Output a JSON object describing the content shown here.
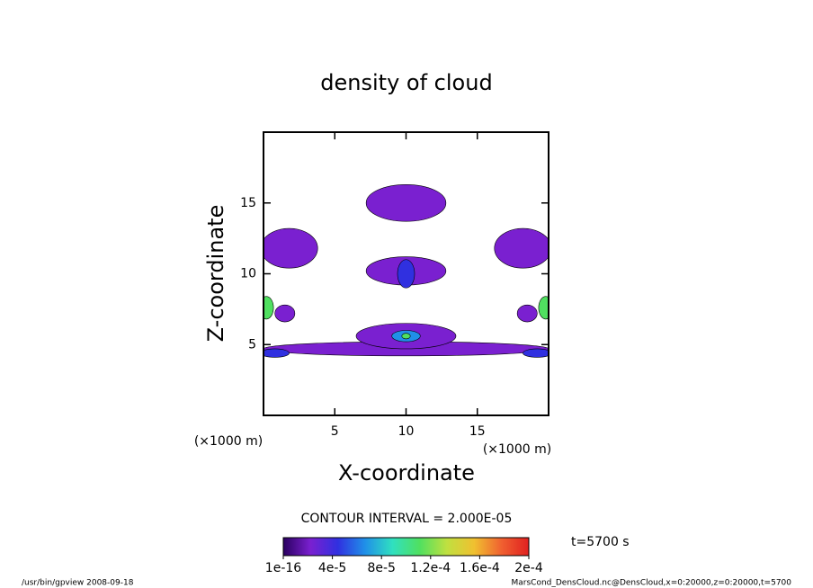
{
  "chart_data": {
    "type": "contour",
    "title": "density of cloud",
    "xlabel": "X-coordinate",
    "ylabel": "Z-coordinate",
    "xunit": "(×1000 m)",
    "yunit": "(×1000 m)",
    "xlim": [
      0,
      20
    ],
    "ylim": [
      0,
      20
    ],
    "xticks": [
      5,
      10,
      15
    ],
    "yticks": [
      5,
      10,
      15
    ],
    "contour_interval": "CONTOUR INTERVAL = 2.000E-05",
    "time_label": "t=5700 s",
    "footer_left": "/usr/bin/gpview  2008-09-18",
    "footer_right": "MarsCond_DensCloud.nc@DensCloud,x=0:20000,z=0:20000,t=5700",
    "colorbar_lim": [
      0,
      0.0002
    ],
    "colorbar_ticks": [
      {
        "value": 1e-16,
        "label": "1e-16"
      },
      {
        "value": 4e-05,
        "label": "4e-5"
      },
      {
        "value": 8e-05,
        "label": "8e-5"
      },
      {
        "value": 0.00012,
        "label": "1.2e-4"
      },
      {
        "value": 0.00016,
        "label": "1.6e-4"
      },
      {
        "value": 0.0002,
        "label": "2e-4"
      }
    ],
    "colormap": [
      "#2a0060",
      "#7a20d0",
      "#3030e0",
      "#2090e8",
      "#30e0c0",
      "#50e060",
      "#c0e040",
      "#f0c030",
      "#f06030",
      "#e02020"
    ],
    "regions": [
      {
        "x": 10,
        "z": 15,
        "rx": 2.8,
        "rz": 1.3,
        "value": 2e-05
      },
      {
        "x": 10,
        "z": 10.2,
        "rx": 2.8,
        "rz": 1.0,
        "value": 2e-05
      },
      {
        "x": 10,
        "z": 10,
        "rx": 0.6,
        "rz": 1.0,
        "value": 4e-05
      },
      {
        "x": 1.8,
        "z": 11.8,
        "rx": 2.0,
        "rz": 1.4,
        "value": 2e-05
      },
      {
        "x": 18.2,
        "z": 11.8,
        "rx": 2.0,
        "rz": 1.4,
        "value": 2e-05
      },
      {
        "x": 10,
        "z": 4.7,
        "rx": 10,
        "rz": 0.5,
        "value": 2e-05
      },
      {
        "x": 10,
        "z": 5.6,
        "rx": 3.5,
        "rz": 0.9,
        "value": 2e-05
      },
      {
        "x": 10,
        "z": 5.6,
        "rx": 1.0,
        "rz": 0.4,
        "value": 6e-05
      },
      {
        "x": 10,
        "z": 5.6,
        "rx": 0.3,
        "rz": 0.2,
        "value": 0.0001
      },
      {
        "x": 1.5,
        "z": 7.2,
        "rx": 0.7,
        "rz": 0.6,
        "value": 2e-05
      },
      {
        "x": 18.5,
        "z": 7.2,
        "rx": 0.7,
        "rz": 0.6,
        "value": 2e-05
      },
      {
        "x": 0.2,
        "z": 7.6,
        "rx": 0.5,
        "rz": 0.8,
        "value": 0.0001
      },
      {
        "x": 19.8,
        "z": 7.6,
        "rx": 0.5,
        "rz": 0.8,
        "value": 0.0001
      },
      {
        "x": 0.8,
        "z": 4.4,
        "rx": 1.0,
        "rz": 0.3,
        "value": 4e-05
      },
      {
        "x": 19.2,
        "z": 4.4,
        "rx": 1.0,
        "rz": 0.3,
        "value": 4e-05
      }
    ]
  }
}
